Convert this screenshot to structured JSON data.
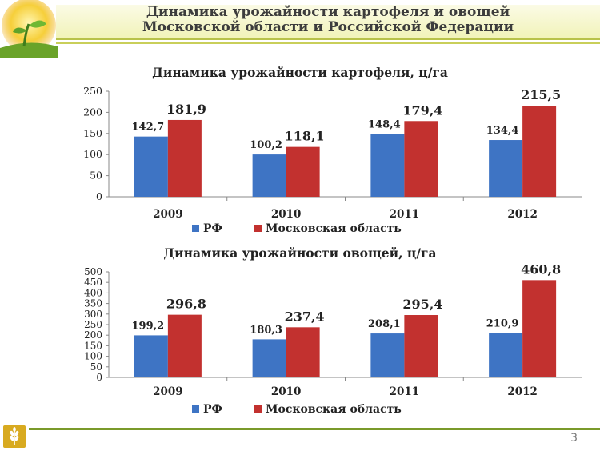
{
  "slide": {
    "title_line1": "Динамика урожайности картофеля и овощей",
    "title_line2": "Московской области и Российской Федерации",
    "page_number": "3"
  },
  "colors": {
    "rf": "#3e74c4",
    "mo": "#c2312f",
    "title_band": "#f1f3b8",
    "accent": "#b8c24a"
  },
  "chart_data": [
    {
      "type": "bar",
      "title": "Динамика урожайности картофеля, ц/га",
      "categories": [
        "2009",
        "2010",
        "2011",
        "2012"
      ],
      "ylim": [
        0,
        250
      ],
      "yticks": [
        0,
        50,
        100,
        150,
        200,
        250
      ],
      "ytick_labels": [
        "0",
        "50",
        "100",
        "150",
        "200",
        "250"
      ],
      "legend_position": "bottom",
      "grid": false,
      "series": [
        {
          "name": "РФ",
          "color": "#3e74c4",
          "values": [
            142.7,
            100.2,
            148.4,
            134.4
          ],
          "labels": [
            "142,7",
            "100,2",
            "148,4",
            "134,4"
          ]
        },
        {
          "name": "Московская область",
          "color": "#c2312f",
          "values": [
            181.9,
            118.1,
            179.4,
            215.5
          ],
          "labels": [
            "181,9",
            "118,1",
            "179,4",
            "215,5"
          ]
        }
      ]
    },
    {
      "type": "bar",
      "title": "Динамика урожайности овощей, ц/га",
      "categories": [
        "2009",
        "2010",
        "2011",
        "2012"
      ],
      "ylim": [
        0,
        500
      ],
      "yticks": [
        0,
        50,
        100,
        150,
        200,
        250,
        300,
        350,
        400,
        450,
        500
      ],
      "ytick_labels": [
        "0",
        "50",
        "100",
        "150",
        "200",
        "250",
        "300",
        "350",
        "400",
        "450",
        "500"
      ],
      "legend_position": "bottom",
      "grid": false,
      "series": [
        {
          "name": "РФ",
          "color": "#3e74c4",
          "values": [
            199.2,
            180.3,
            208.1,
            210.9
          ],
          "labels": [
            "199,2",
            "180,3",
            "208,1",
            "210,9"
          ]
        },
        {
          "name": "Московская область",
          "color": "#c2312f",
          "values": [
            296.8,
            237.4,
            295.4,
            460.8
          ],
          "labels": [
            "296,8",
            "237,4",
            "295,4",
            "460,8"
          ]
        }
      ]
    }
  ]
}
